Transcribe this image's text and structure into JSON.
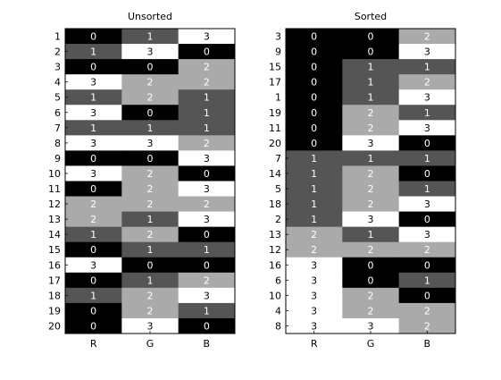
{
  "chart_data": [
    {
      "type": "heatmap",
      "title": "Unsorted",
      "columns": [
        "R",
        "G",
        "B"
      ],
      "row_labels": [
        "1",
        "2",
        "3",
        "4",
        "5",
        "6",
        "7",
        "8",
        "9",
        "10",
        "11",
        "12",
        "13",
        "14",
        "15",
        "16",
        "17",
        "18",
        "19",
        "20"
      ],
      "values": [
        [
          0,
          1,
          3
        ],
        [
          1,
          3,
          0
        ],
        [
          0,
          0,
          2
        ],
        [
          3,
          2,
          2
        ],
        [
          1,
          2,
          1
        ],
        [
          3,
          0,
          1
        ],
        [
          1,
          1,
          1
        ],
        [
          3,
          3,
          2
        ],
        [
          0,
          0,
          3
        ],
        [
          3,
          2,
          0
        ],
        [
          0,
          2,
          3
        ],
        [
          2,
          2,
          2
        ],
        [
          2,
          1,
          3
        ],
        [
          1,
          2,
          0
        ],
        [
          0,
          1,
          1
        ],
        [
          3,
          0,
          0
        ],
        [
          0,
          1,
          2
        ],
        [
          1,
          2,
          3
        ],
        [
          0,
          2,
          1
        ],
        [
          0,
          3,
          0
        ]
      ],
      "value_range": [
        0,
        3
      ],
      "colors": [
        "#000000",
        "#555555",
        "#aaaaaa",
        "#ffffff"
      ]
    },
    {
      "type": "heatmap",
      "title": "Sorted",
      "columns": [
        "R",
        "G",
        "B"
      ],
      "row_labels": [
        "3",
        "9",
        "15",
        "17",
        "1",
        "19",
        "11",
        "20",
        "7",
        "14",
        "5",
        "18",
        "2",
        "13",
        "12",
        "16",
        "6",
        "10",
        "4",
        "8"
      ],
      "values": [
        [
          0,
          0,
          2
        ],
        [
          0,
          0,
          3
        ],
        [
          0,
          1,
          1
        ],
        [
          0,
          1,
          2
        ],
        [
          0,
          1,
          3
        ],
        [
          0,
          2,
          1
        ],
        [
          0,
          2,
          3
        ],
        [
          0,
          3,
          0
        ],
        [
          1,
          1,
          1
        ],
        [
          1,
          2,
          0
        ],
        [
          1,
          2,
          1
        ],
        [
          1,
          2,
          3
        ],
        [
          1,
          3,
          0
        ],
        [
          2,
          1,
          3
        ],
        [
          2,
          2,
          2
        ],
        [
          3,
          0,
          0
        ],
        [
          3,
          0,
          1
        ],
        [
          3,
          2,
          0
        ],
        [
          3,
          2,
          2
        ],
        [
          3,
          3,
          2
        ]
      ],
      "value_range": [
        0,
        3
      ],
      "colors": [
        "#000000",
        "#555555",
        "#aaaaaa",
        "#ffffff"
      ]
    }
  ]
}
